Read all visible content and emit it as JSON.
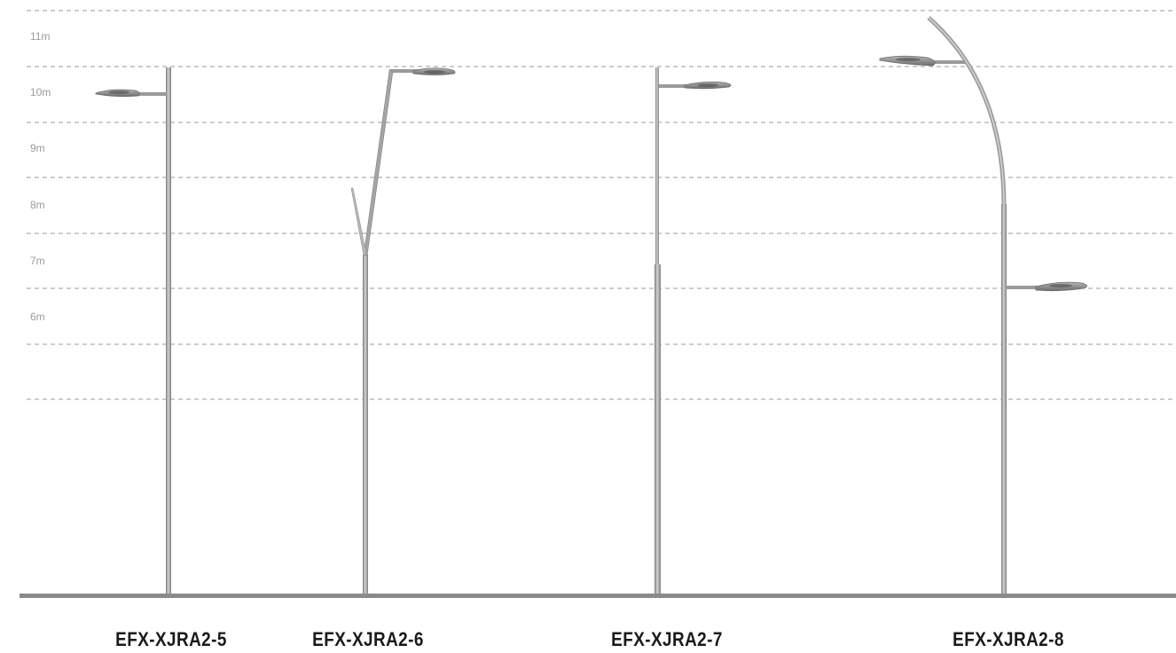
{
  "scale": {
    "labels": [
      "11m",
      "10m",
      "9m",
      "8m",
      "7m",
      "6m"
    ]
  },
  "poles": [
    {
      "model": "EFX-XJRA2-5"
    },
    {
      "model": "EFX-XJRA2-6"
    },
    {
      "model": "EFX-XJRA2-7"
    },
    {
      "model": "EFX-XJRA2-8"
    }
  ],
  "colors": {
    "pole": "#a3a3a3",
    "pole_dark": "#7c7c7c",
    "ground": "#8a8a8a",
    "gridline": "#9b9b9b",
    "lamp": "#8e8e8e"
  }
}
